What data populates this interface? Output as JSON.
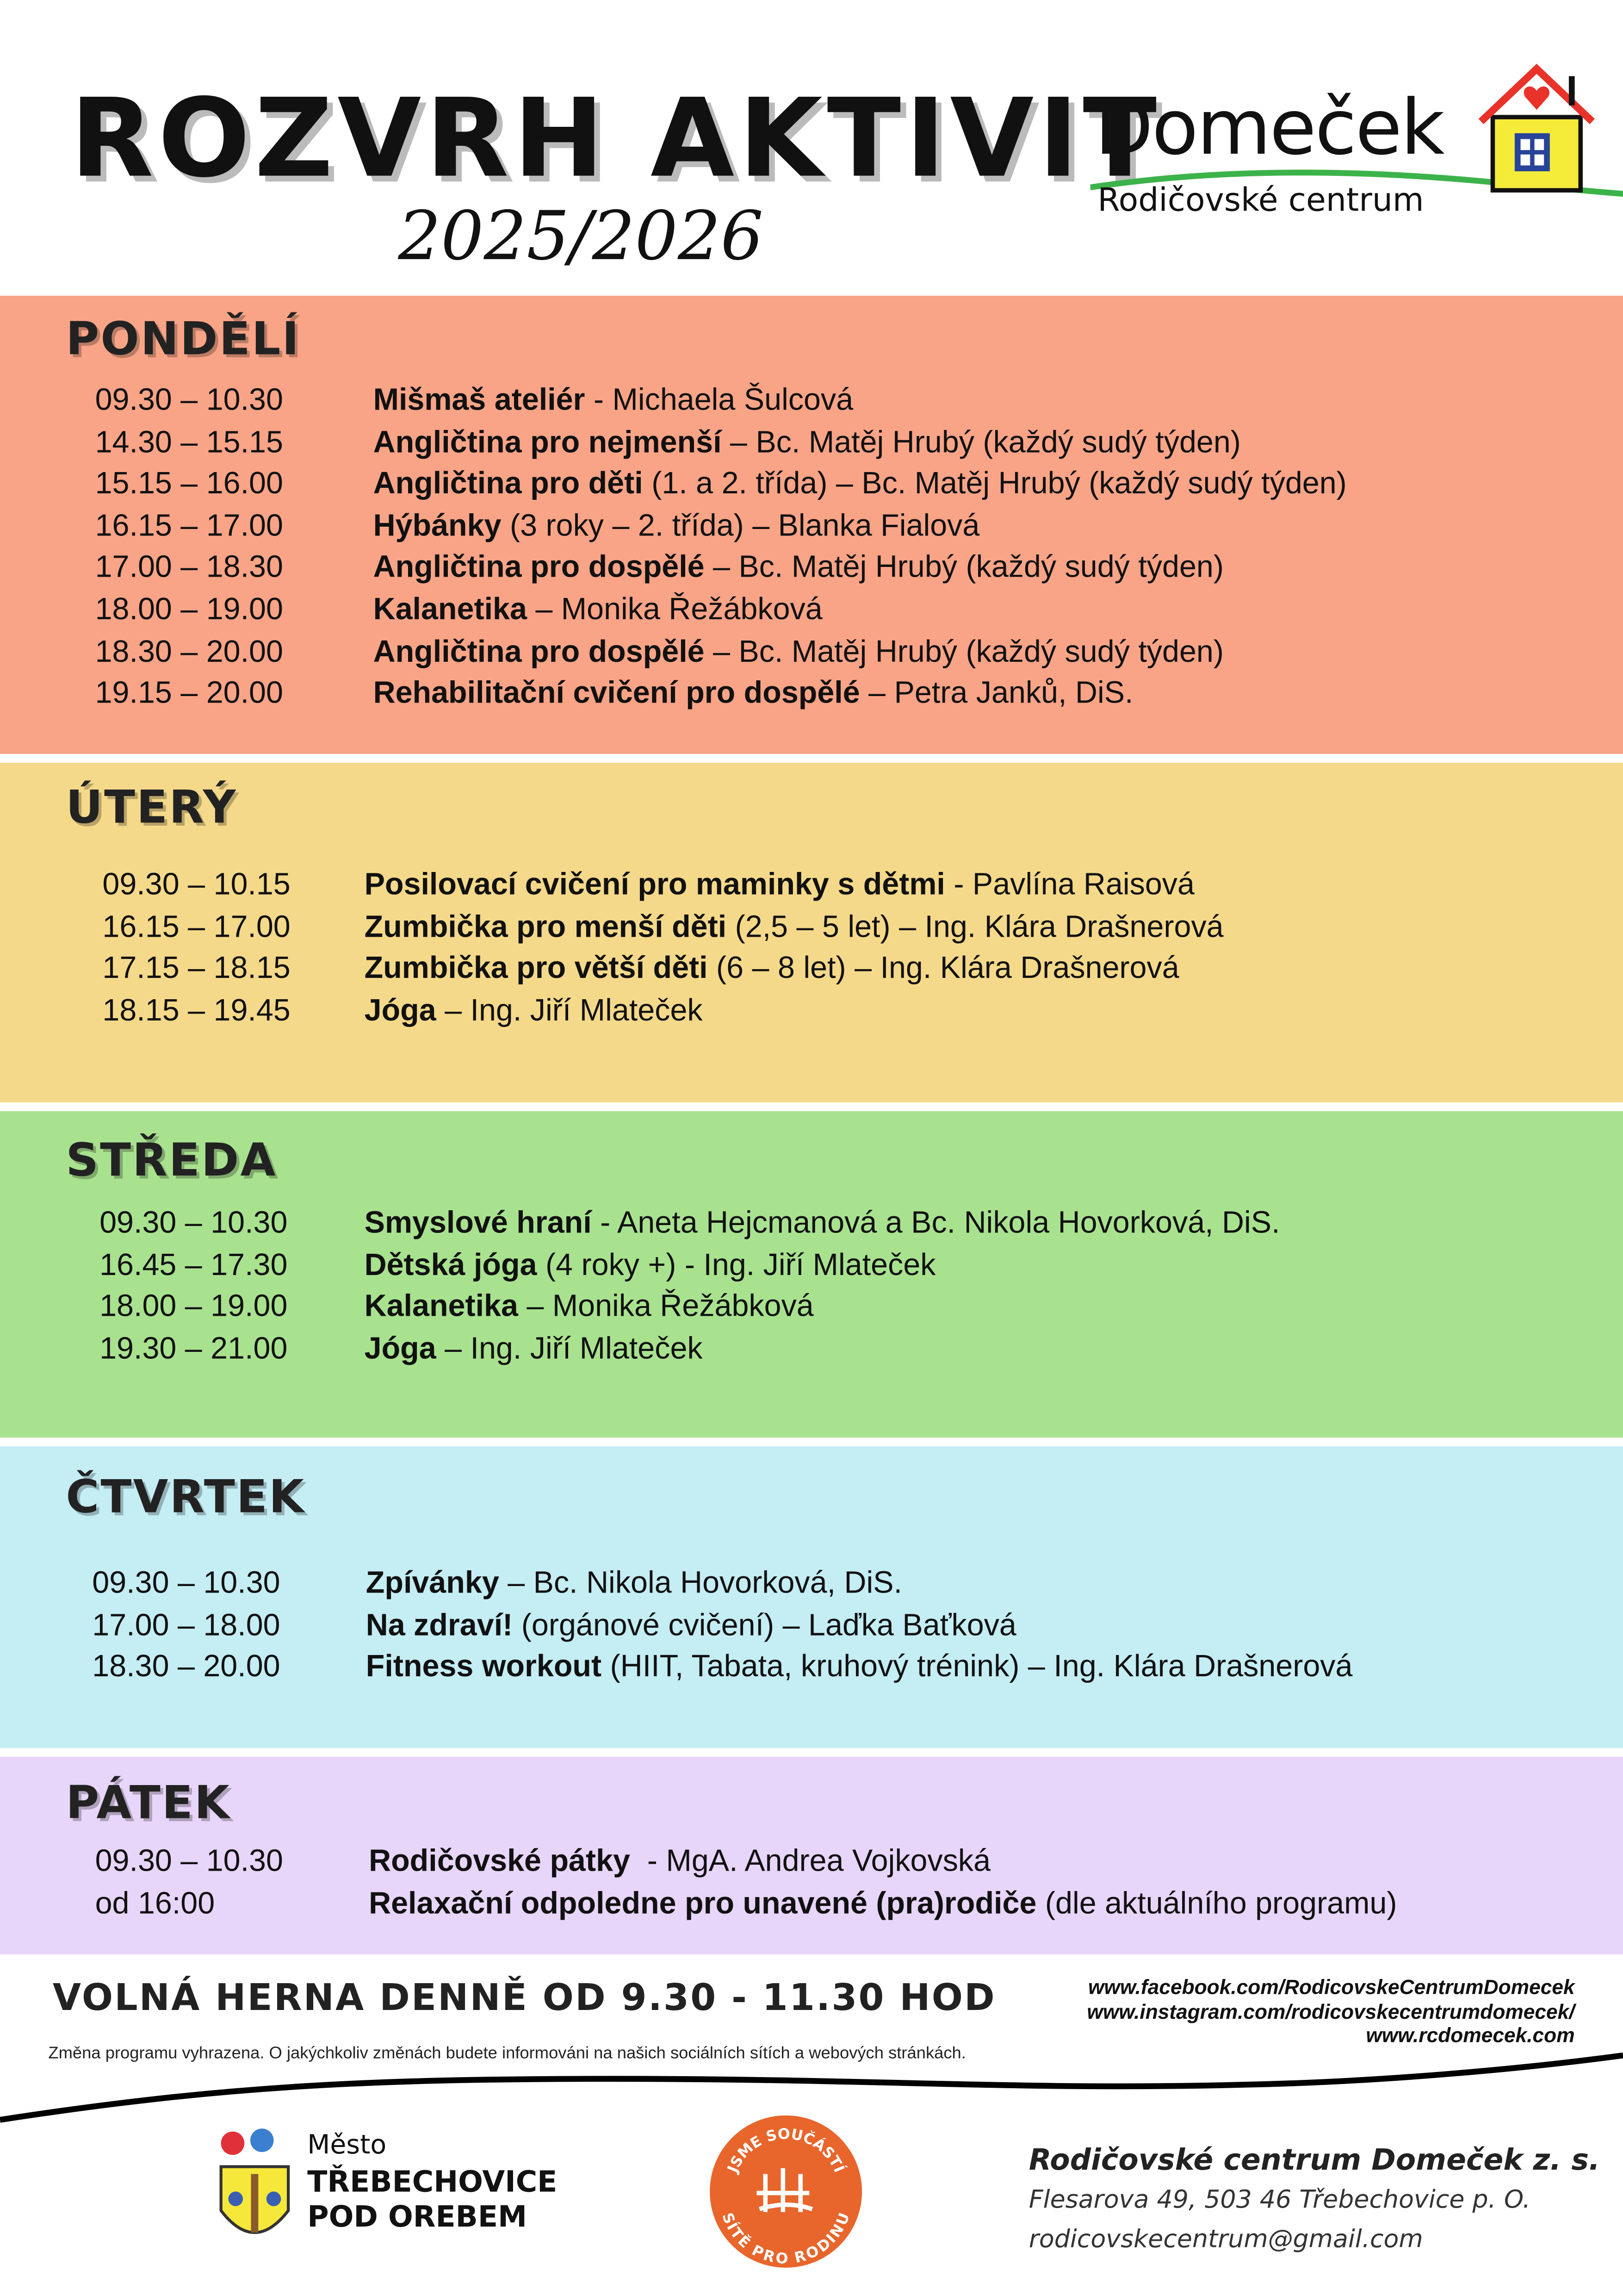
{
  "header": {
    "title": "ROZVRH AKTIVIT",
    "year": "2025/2026",
    "logo_name": "Domeček",
    "logo_sub": "Rodičovské centrum"
  },
  "colors": {
    "pondeli": "#F9A487",
    "utery": "#F5D98A",
    "streda": "#A9E28F",
    "ctvrtek": "#C4EDF4",
    "patek": "#E8D5FA"
  },
  "days": [
    {
      "name": "PONDĚLÍ",
      "rows": [
        {
          "time": "09.30 – 10.30",
          "activity": "Mišmaš ateliér",
          "rest": " - Michaela Šulcová"
        },
        {
          "time": "14.30 – 15.15",
          "activity": "Angličtina pro nejmenší",
          "rest": " – Bc. Matěj Hrubý (každý sudý týden)"
        },
        {
          "time": "15.15 – 16.00",
          "activity": "Angličtina pro děti",
          "rest": " (1. a 2. třída) – Bc. Matěj Hrubý (každý sudý týden)"
        },
        {
          "time": "16.15 – 17.00",
          "activity": "Hýbánky",
          "rest": " (3 roky – 2. třída) – Blanka Fialová"
        },
        {
          "time": "17.00 – 18.30",
          "activity": "Angličtina pro dospělé",
          "rest": " – Bc. Matěj Hrubý (každý sudý týden)"
        },
        {
          "time": "18.00 – 19.00",
          "activity": "Kalanetika",
          "rest": " – Monika Řežábková"
        },
        {
          "time": "18.30 – 20.00",
          "activity": "Angličtina pro dospělé",
          "rest": " – Bc. Matěj Hrubý (každý sudý týden)"
        },
        {
          "time": "19.15 – 20.00",
          "activity": "Rehabilitační cvičení pro dospělé",
          "rest": " – Petra Janků, DiS."
        }
      ]
    },
    {
      "name": "ÚTERÝ",
      "rows": [
        {
          "time": "09.30 – 10.15",
          "activity": "Posilovací cvičení pro maminky s dětmi",
          "rest": " - Pavlína Raisová"
        },
        {
          "time": "16.15 – 17.00",
          "activity": "Zumbička pro menší děti",
          "rest": " (2,5 – 5 let) – Ing. Klára Drašnerová"
        },
        {
          "time": "17.15 – 18.15",
          "activity": "Zumbička pro větší děti",
          "rest": " (6 – 8 let) – Ing. Klára Drašnerová"
        },
        {
          "time": "18.15 – 19.45",
          "activity": "Jóga",
          "rest": " – Ing. Jiří Mlateček"
        }
      ]
    },
    {
      "name": "STŘEDA",
      "rows": [
        {
          "time": "09.30 – 10.30",
          "activity": "Smyslové hraní",
          "rest": " - Aneta Hejcmanová a Bc. Nikola Hovorková, DiS."
        },
        {
          "time": "16.45 – 17.30",
          "activity": "Dětská jóga",
          "rest": " (4 roky +) - Ing. Jiří Mlateček"
        },
        {
          "time": "18.00 – 19.00",
          "activity": "Kalanetika",
          "rest": " – Monika Řežábková"
        },
        {
          "time": "19.30 – 21.00",
          "activity": "Jóga",
          "rest": " – Ing. Jiří Mlateček"
        }
      ]
    },
    {
      "name": "ČTVRTEK",
      "rows": [
        {
          "time": "09.30 – 10.30",
          "activity": "Zpívánky",
          "rest": " – Bc. Nikola Hovorková, DiS."
        },
        {
          "time": "17.00 – 18.00",
          "activity": "Na zdraví!",
          "rest": " (orgánové cvičení) – Laďka Baťková"
        },
        {
          "time": "18.30 – 20.00",
          "activity": "Fitness workout",
          "rest": " (HIIT, Tabata, kruhový trénink) – Ing. Klára Drašnerová"
        }
      ]
    },
    {
      "name": "PÁTEK",
      "rows": [
        {
          "time": "09.30 – 10.30",
          "activity": "Rodičovské pátky",
          "rest": "  - MgA. Andrea Vojkovská"
        },
        {
          "time": "od 16:00",
          "activity": "Relaxační odpoledne pro unavené (pra)rodiče",
          "rest": " (dle aktuálního programu)"
        }
      ]
    }
  ],
  "footer": {
    "herna": "VOLNÁ HERNA DENNĚ OD 9.30 - 11.30 HOD",
    "links": [
      "www.facebook.com/RodicovskeCentrumDomecek",
      "www.instagram.com/rodicovskecentrumdomecek/",
      "www.rcdomecek.com"
    ],
    "note": "Změna programu vyhrazena. O jakýchkoliv změnách budete informováni na našich sociálních sítích a webových stránkách.",
    "city_logo": [
      "Město",
      "TŘEBECHOVICE",
      "POD OREBEM"
    ],
    "badge_text": [
      "JSME SOUČÁSTÍ",
      "SÍTĚ PRO RODINU"
    ],
    "org_name": "Rodičovské centrum Domeček z. s.",
    "org_address": "Flesarova 49, 503 46 Třebechovice p. O.",
    "org_email": "rodicovskecentrum@gmail.com"
  }
}
